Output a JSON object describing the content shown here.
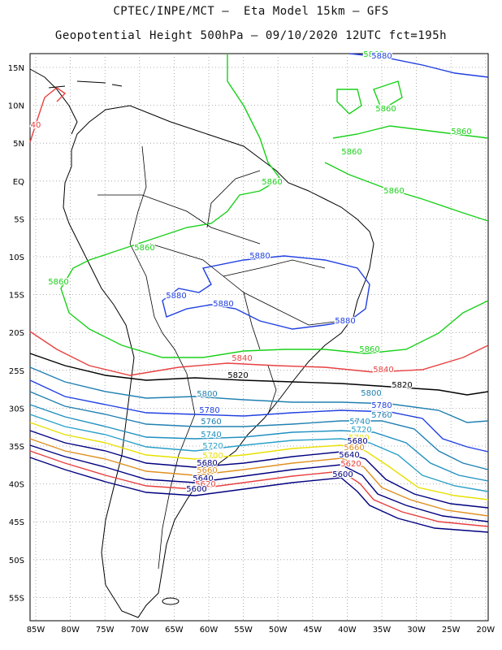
{
  "header": {
    "line1": "CPTEC/INPE/MCT –  Eta Model 15km – GFS",
    "line2": "Geopotential Height 500hPa – 09/10/2020 12UTC fct=195h"
  },
  "axes": {
    "lon_ticks": [
      "85W",
      "80W",
      "75W",
      "70W",
      "65W",
      "60W",
      "55W",
      "50W",
      "45W",
      "40W",
      "35W",
      "30W",
      "25W",
      "20W"
    ],
    "lat_ticks": [
      "15N",
      "10N",
      "5N",
      "EQ",
      "5S",
      "10S",
      "15S",
      "20S",
      "25S",
      "30S",
      "35S",
      "40S",
      "45S",
      "50S",
      "55S"
    ]
  },
  "contour_labels": [
    {
      "text": "5860",
      "color": "#1ad01a"
    },
    {
      "text": "5860",
      "color": "#1ad01a"
    },
    {
      "text": "5860",
      "color": "#1ad01a"
    },
    {
      "text": "5860",
      "color": "#1ad01a"
    },
    {
      "text": "5860",
      "color": "#1ad01a"
    },
    {
      "text": "5860",
      "color": "#1ad01a"
    },
    {
      "text": "5860",
      "color": "#1ad01a"
    },
    {
      "text": "5860",
      "color": "#1ad01a"
    },
    {
      "text": "5860",
      "color": "#1ad01a"
    },
    {
      "text": "5880",
      "color": "#2040e0"
    },
    {
      "text": "5880",
      "color": "#2040e0"
    },
    {
      "text": "5880",
      "color": "#2040e0"
    },
    {
      "text": "5880",
      "color": "#2040e0"
    },
    {
      "text": "5880",
      "color": "#2040e0"
    },
    {
      "text": "5840",
      "color": "#e84040"
    },
    {
      "text": "5840",
      "color": "#e84040"
    },
    {
      "text": "5820",
      "color": "#000000"
    },
    {
      "text": "5820",
      "color": "#000000"
    },
    {
      "text": "5800",
      "color": "#2080b0"
    },
    {
      "text": "5800",
      "color": "#2080b0"
    },
    {
      "text": "5780",
      "color": "#2040e0"
    },
    {
      "text": "5780",
      "color": "#2040e0"
    },
    {
      "text": "5760",
      "color": "#2080b0"
    },
    {
      "text": "5760",
      "color": "#2080b0"
    },
    {
      "text": "5740",
      "color": "#2090c0"
    },
    {
      "text": "5740",
      "color": "#2090c0"
    },
    {
      "text": "5720",
      "color": "#2aa0c8"
    },
    {
      "text": "5720",
      "color": "#2aa0c8"
    },
    {
      "text": "5700",
      "color": "#e8e000"
    },
    {
      "text": "5700",
      "color": "#e8e000"
    },
    {
      "text": "5680",
      "color": "#000080"
    },
    {
      "text": "5680",
      "color": "#000080"
    },
    {
      "text": "5660",
      "color": "#e09020"
    },
    {
      "text": "5660",
      "color": "#e09020"
    },
    {
      "text": "5640",
      "color": "#000080"
    },
    {
      "text": "5640",
      "color": "#000080"
    },
    {
      "text": "5620",
      "color": "#e84040"
    },
    {
      "text": "5620",
      "color": "#e84040"
    },
    {
      "text": "5600",
      "color": "#000080"
    },
    {
      "text": "5600",
      "color": "#000080"
    },
    {
      "text": "40",
      "color": "#e84040"
    }
  ],
  "colors": {
    "c5880": "#2040e0",
    "c5860": "#1ad01a",
    "c5840": "#e84040",
    "c5820": "#000000",
    "c5800": "#2080b0",
    "c5780": "#2040e0",
    "c5760": "#2080b0",
    "c5740": "#2090c0",
    "c5720": "#2aa0c8",
    "c5700": "#e8e000",
    "c5680": "#000080",
    "c5660": "#e09020",
    "c5640": "#000080",
    "c5620": "#e84040",
    "c5600": "#000080"
  }
}
